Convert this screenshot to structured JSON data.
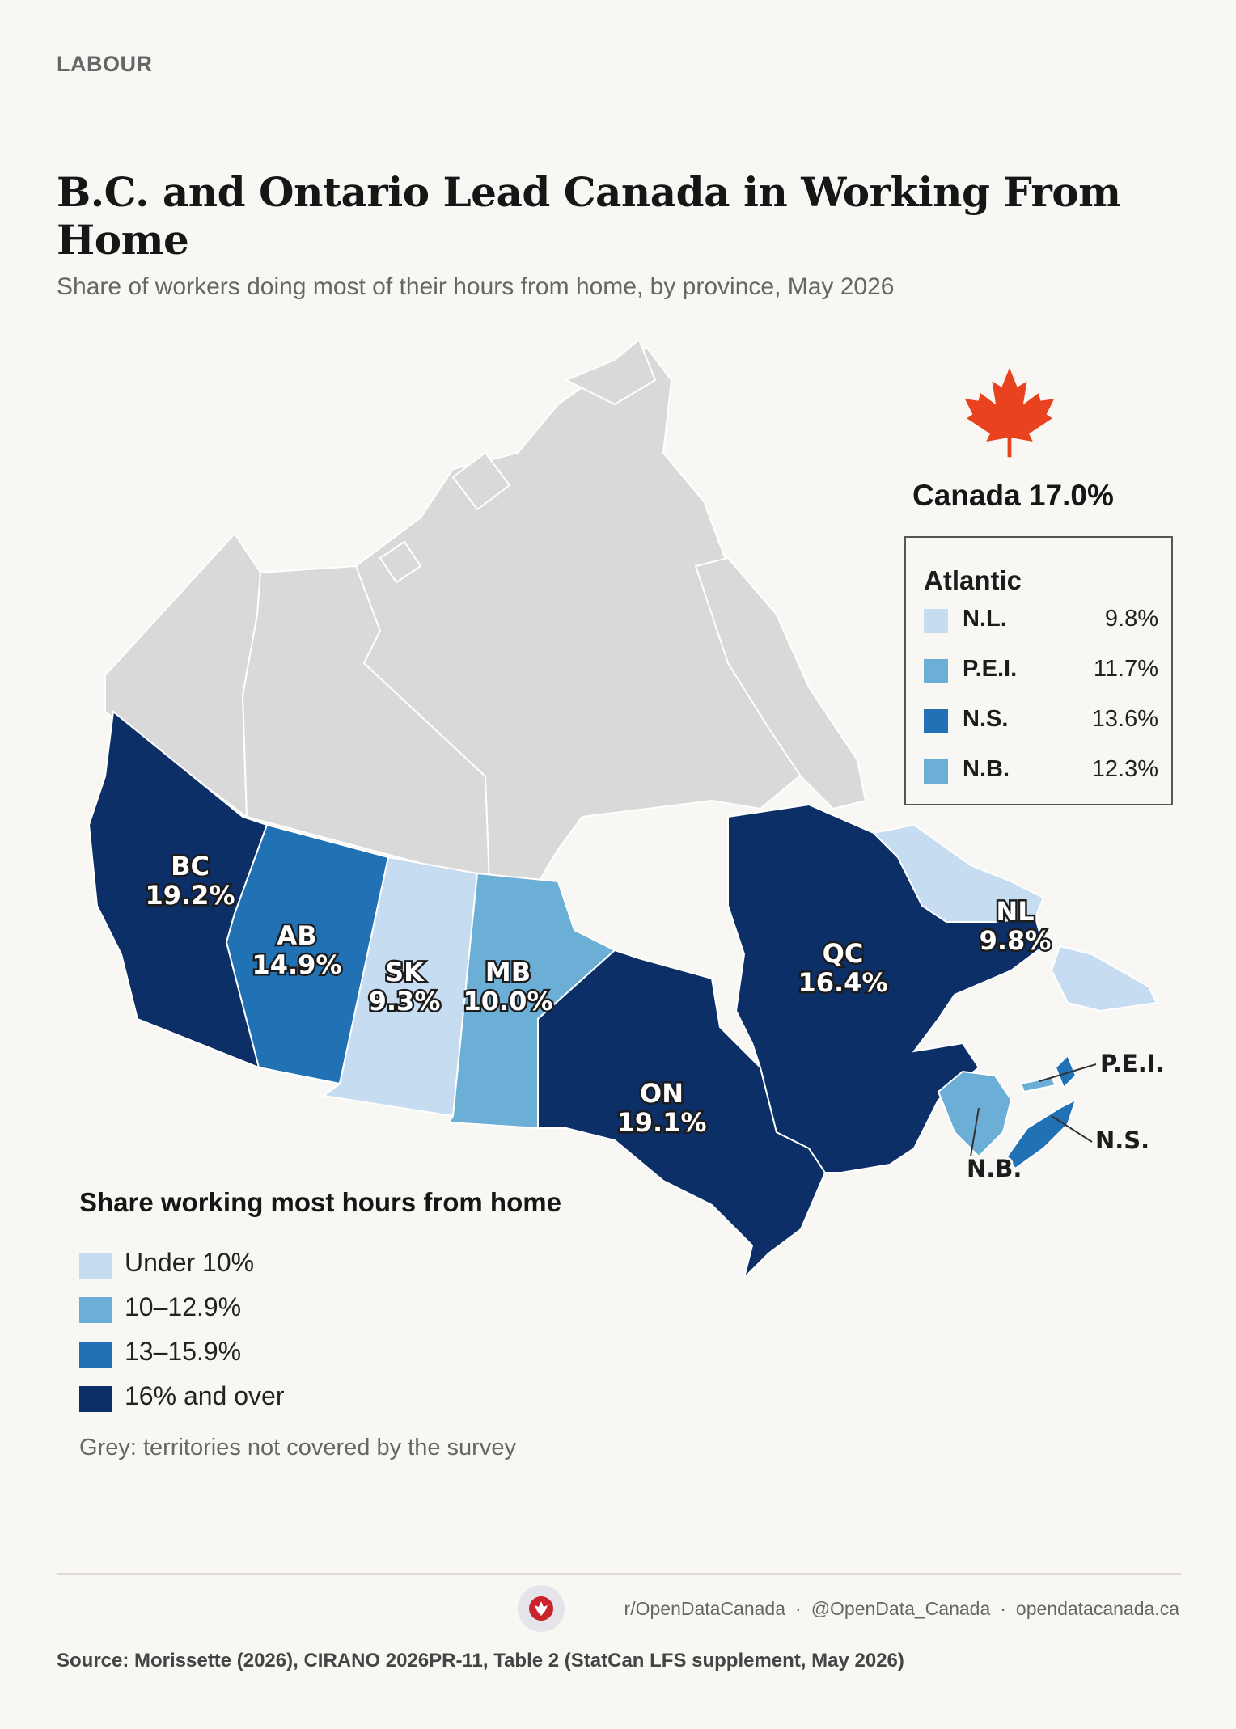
{
  "kicker": "LABOUR",
  "title": "B.C. and Ontario Lead Canada in Working From Home",
  "subtitle": "Share of workers doing most of their hours from home, by province, May 2026",
  "national": {
    "label": "Canada 17.0%",
    "value": 17.0
  },
  "colors": {
    "under10": "#c6dcf0",
    "ten_to_13": "#6baed6",
    "thirteen_to_16": "#2171b5",
    "sixteen_plus": "#0b2f66",
    "territory": "#d9d9d9",
    "background": "#f9f7f3"
  },
  "provinces": [
    {
      "code": "BC",
      "value": 19.2,
      "value_label": "19.2%",
      "bin": "sixteen_plus"
    },
    {
      "code": "AB",
      "value": 14.9,
      "value_label": "14.9%",
      "bin": "thirteen_to_16"
    },
    {
      "code": "SK",
      "value": 9.3,
      "value_label": "9.3%",
      "bin": "under10"
    },
    {
      "code": "MB",
      "value": 10.0,
      "value_label": "10.0%",
      "bin": "ten_to_13"
    },
    {
      "code": "ON",
      "value": 19.1,
      "value_label": "19.1%",
      "bin": "sixteen_plus"
    },
    {
      "code": "QC",
      "value": 16.4,
      "value_label": "16.4%",
      "bin": "sixteen_plus"
    },
    {
      "code": "NL",
      "value": 9.8,
      "value_label": "9.8%",
      "bin": "under10"
    }
  ],
  "callouts": {
    "pei": "P.E.I.",
    "ns": "N.S.",
    "nb": "N.B."
  },
  "atlantic": {
    "title": "Atlantic",
    "rows": [
      {
        "name": "N.L.",
        "value": "9.8%",
        "bin": "under10"
      },
      {
        "name": "P.E.I.",
        "value": "11.7%",
        "bin": "ten_to_13"
      },
      {
        "name": "N.S.",
        "value": "13.6%",
        "bin": "thirteen_to_16"
      },
      {
        "name": "N.B.",
        "value": "12.3%",
        "bin": "ten_to_13"
      }
    ]
  },
  "legend": {
    "title": "Share working most hours from home",
    "items": [
      {
        "label": "Under 10%",
        "bin": "under10"
      },
      {
        "label": "10–12.9%",
        "bin": "ten_to_13"
      },
      {
        "label": "13–15.9%",
        "bin": "thirteen_to_16"
      },
      {
        "label": "16% and over",
        "bin": "sixteen_plus"
      }
    ],
    "note": "Grey: territories not covered by the survey"
  },
  "footer": {
    "reddit": "r/OpenDataCanada",
    "twitter": "@OpenData_Canada",
    "site": "opendatacanada.ca",
    "separator": "·",
    "source": "Source: Morissette (2026), CIRANO 2026PR-11, Table 2 (StatCan LFS supplement, May 2026)"
  }
}
